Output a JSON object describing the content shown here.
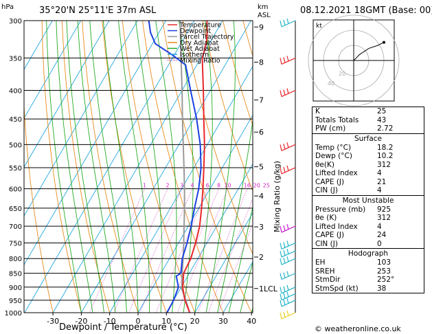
{
  "header": {
    "location": "35°20'N  25°11'E  37m  ASL",
    "date": "08.12.2021  18GMT  (Base: 00)",
    "hpa_label": "hPa",
    "km_label": "km",
    "asl_label": "ASL"
  },
  "legend": [
    {
      "label": "Temperature",
      "color": "#e8262a",
      "style": "solid"
    },
    {
      "label": "Dewpoint",
      "color": "#1a3fe0",
      "style": "solid"
    },
    {
      "label": "Parcel Trajectory",
      "color": "#999999",
      "style": "solid"
    },
    {
      "label": "Dry Adiabat",
      "color": "#e88a1a",
      "style": "solid"
    },
    {
      "label": "Wet Adiabat",
      "color": "#22aa22",
      "style": "solid"
    },
    {
      "label": "Isotherm",
      "color": "#22a7e0",
      "style": "solid"
    },
    {
      "label": "Mixing Ratio",
      "color": "#d020c0",
      "style": "dotted"
    }
  ],
  "chart_data": {
    "type": "line",
    "title": "",
    "xlabel": "Dewpoint / Temperature (°C)",
    "ylabel": "hPa",
    "right_axis_label": "Mixing Ratio (g/kg)",
    "xlim": [
      -35,
      40
    ],
    "ylim": [
      1000,
      300
    ],
    "x_ticks": [
      -30,
      -20,
      -10,
      0,
      10,
      20,
      30,
      40
    ],
    "pressure_ticks": [
      300,
      350,
      400,
      450,
      500,
      550,
      600,
      650,
      700,
      750,
      800,
      850,
      900,
      950,
      1000
    ],
    "km_ticks": [
      {
        "km": "1LCL",
        "p": 905
      },
      {
        "km": "2",
        "p": 795
      },
      {
        "km": "3",
        "p": 702
      },
      {
        "km": "4",
        "p": 618
      },
      {
        "km": "5",
        "p": 548
      },
      {
        "km": "6",
        "p": 475
      },
      {
        "km": "7",
        "p": 416
      },
      {
        "km": "8",
        "p": 356
      },
      {
        "km": "9",
        "p": 308
      }
    ],
    "mixing_ratio_labels": [
      "1",
      "2",
      "3",
      "4",
      "6",
      "8",
      "10",
      "16",
      "20",
      "25"
    ],
    "mixing_ratio_values": [
      1,
      2,
      3,
      4,
      6,
      8,
      10,
      16,
      20,
      25
    ],
    "series": [
      {
        "name": "Temperature",
        "color": "#e8262a",
        "points": [
          [
            1000,
            18.2
          ],
          [
            950,
            14
          ],
          [
            900,
            10.5
          ],
          [
            850,
            8
          ],
          [
            800,
            7.5
          ],
          [
            750,
            6
          ],
          [
            700,
            4
          ],
          [
            650,
            1
          ],
          [
            600,
            -2.5
          ],
          [
            550,
            -6.5
          ],
          [
            500,
            -11
          ],
          [
            450,
            -16.5
          ],
          [
            400,
            -22.5
          ],
          [
            350,
            -29.5
          ],
          [
            330,
            -31
          ],
          [
            315,
            -33
          ],
          [
            300,
            -35.5
          ]
        ]
      },
      {
        "name": "Dewpoint",
        "color": "#1a3fe0",
        "points": [
          [
            1000,
            10.2
          ],
          [
            950,
            10
          ],
          [
            900,
            9
          ],
          [
            860,
            6
          ],
          [
            850,
            7
          ],
          [
            800,
            4.5
          ],
          [
            750,
            3
          ],
          [
            700,
            1
          ],
          [
            650,
            -1.5
          ],
          [
            600,
            -4
          ],
          [
            550,
            -7.5
          ],
          [
            500,
            -12.5
          ],
          [
            450,
            -19
          ],
          [
            400,
            -27
          ],
          [
            360,
            -34
          ],
          [
            345,
            -41
          ],
          [
            330,
            -49
          ],
          [
            315,
            -53
          ],
          [
            300,
            -56
          ]
        ]
      },
      {
        "name": "Parcel Trajectory",
        "color": "#999999",
        "points": [
          [
            1000,
            18.2
          ],
          [
            950,
            14.3
          ],
          [
            905,
            10.4
          ],
          [
            850,
            7.5
          ],
          [
            800,
            4.8
          ],
          [
            750,
            1.8
          ],
          [
            700,
            -1.5
          ],
          [
            650,
            -5
          ],
          [
            600,
            -9
          ],
          [
            550,
            -13.5
          ],
          [
            500,
            -18.5
          ],
          [
            450,
            -24
          ],
          [
            400,
            -30
          ],
          [
            350,
            -37
          ],
          [
            300,
            -45
          ]
        ]
      }
    ]
  },
  "hodograph": {
    "label": "kt",
    "ring_labels": [
      "20",
      "40"
    ],
    "points": [
      [
        0,
        0
      ],
      [
        4,
        4
      ],
      [
        10,
        8
      ],
      [
        16,
        10
      ],
      [
        20,
        12
      ]
    ]
  },
  "wind_barbs": [
    {
      "p": 1000,
      "color": "#e8d01a"
    },
    {
      "p": 950,
      "color": "#22b4c8"
    },
    {
      "p": 925,
      "color": "#22b4c8"
    },
    {
      "p": 900,
      "color": "#22b4c8"
    },
    {
      "p": 850,
      "color": "#22b4c8"
    },
    {
      "p": 800,
      "color": "#22b4c8"
    },
    {
      "p": 775,
      "color": "#22b4c8"
    },
    {
      "p": 750,
      "color": "#22b4c8"
    },
    {
      "p": 700,
      "color": "#c81ad0"
    },
    {
      "p": 550,
      "color": "#e8262a"
    },
    {
      "p": 500,
      "color": "#e8262a"
    },
    {
      "p": 400,
      "color": "#e8262a"
    },
    {
      "p": 350,
      "color": "#e8262a"
    },
    {
      "p": 300,
      "color": "#22b4c8"
    }
  ],
  "indices": {
    "top": [
      {
        "key": "K",
        "value": "25"
      },
      {
        "key": "Totals Totals",
        "value": "43"
      },
      {
        "key": "PW (cm)",
        "value": "2.72"
      }
    ],
    "surface_title": "Surface",
    "surface": [
      {
        "key": "Temp (°C)",
        "value": "18.2"
      },
      {
        "key": "Dewp (°C)",
        "value": "10.2"
      },
      {
        "key": "θe(K)",
        "value": "312"
      },
      {
        "key": "Lifted Index",
        "value": "4"
      },
      {
        "key": "CAPE (J)",
        "value": "21"
      },
      {
        "key": "CIN (J)",
        "value": "4"
      }
    ],
    "unstable_title": "Most Unstable",
    "unstable": [
      {
        "key": "Pressure (mb)",
        "value": "925"
      },
      {
        "key": "θe (K)",
        "value": "312"
      },
      {
        "key": "Lifted Index",
        "value": "4"
      },
      {
        "key": "CAPE (J)",
        "value": "24"
      },
      {
        "key": "CIN (J)",
        "value": "0"
      }
    ],
    "hodo_title": "Hodograph",
    "hodo": [
      {
        "key": "EH",
        "value": "103"
      },
      {
        "key": "SREH",
        "value": "253"
      },
      {
        "key": "StmDir",
        "value": "252°"
      },
      {
        "key": "StmSpd (kt)",
        "value": "38"
      }
    ]
  },
  "footer": {
    "copyright": "© weatheronline.co.uk"
  }
}
